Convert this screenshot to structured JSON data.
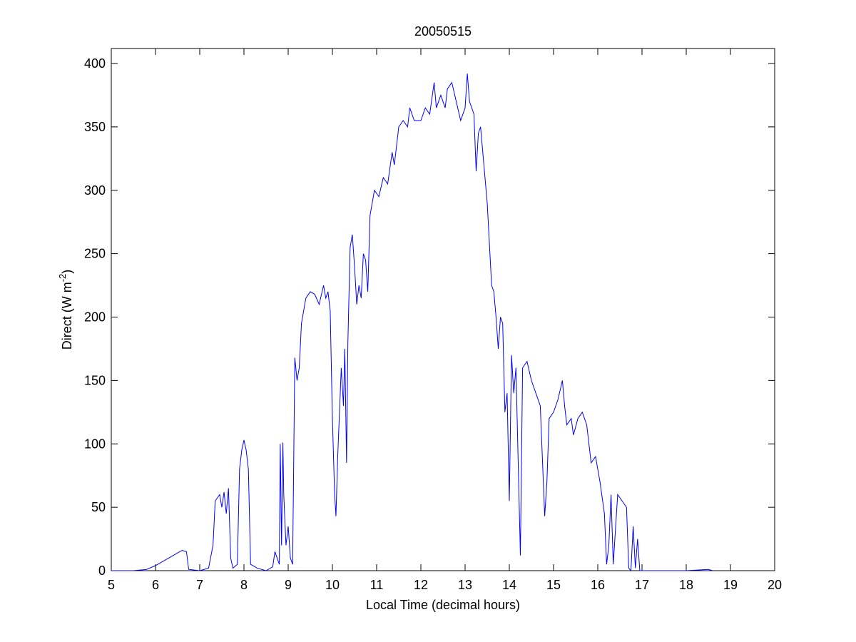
{
  "chart_data": {
    "type": "line",
    "title": "20050515",
    "xlabel": "Local Time (decimal hours)",
    "ylabel": [
      "Direct (W m",
      "-2",
      ")"
    ],
    "xlim": [
      5,
      20
    ],
    "ylim": [
      0,
      400
    ],
    "xticks": [
      5,
      6,
      7,
      8,
      9,
      10,
      11,
      12,
      13,
      14,
      15,
      16,
      17,
      18,
      19,
      20
    ],
    "yticks": [
      0,
      50,
      100,
      150,
      200,
      250,
      300,
      350,
      400
    ],
    "series": [
      {
        "color": "#0000ff",
        "x": [
          5.0,
          5.5,
          5.8,
          6.0,
          6.2,
          6.4,
          6.6,
          6.7,
          6.75,
          7.0,
          7.2,
          7.3,
          7.35,
          7.45,
          7.5,
          7.55,
          7.6,
          7.65,
          7.7,
          7.75,
          7.85,
          7.9,
          7.95,
          8.0,
          8.05,
          8.1,
          8.15,
          8.3,
          8.5,
          8.65,
          8.7,
          8.8,
          8.82,
          8.85,
          8.88,
          8.9,
          8.95,
          9.0,
          9.05,
          9.1,
          9.15,
          9.2,
          9.25,
          9.3,
          9.4,
          9.5,
          9.6,
          9.7,
          9.8,
          9.85,
          9.9,
          9.95,
          10.0,
          10.05,
          10.08,
          10.12,
          10.2,
          10.25,
          10.28,
          10.32,
          10.35,
          10.4,
          10.45,
          10.5,
          10.55,
          10.6,
          10.65,
          10.7,
          10.75,
          10.8,
          10.85,
          10.95,
          11.05,
          11.15,
          11.25,
          11.35,
          11.4,
          11.5,
          11.6,
          11.7,
          11.75,
          11.85,
          12.0,
          12.1,
          12.2,
          12.3,
          12.35,
          12.45,
          12.55,
          12.6,
          12.7,
          12.8,
          12.9,
          13.0,
          13.05,
          13.1,
          13.2,
          13.25,
          13.3,
          13.35,
          13.4,
          13.5,
          13.6,
          13.65,
          13.7,
          13.75,
          13.8,
          13.85,
          13.9,
          13.95,
          14.0,
          14.05,
          14.1,
          14.15,
          14.25,
          14.3,
          14.4,
          14.5,
          14.6,
          14.7,
          14.8,
          14.85,
          14.9,
          15.0,
          15.1,
          15.2,
          15.25,
          15.3,
          15.4,
          15.45,
          15.55,
          15.65,
          15.75,
          15.85,
          15.95,
          16.05,
          16.15,
          16.2,
          16.25,
          16.3,
          16.35,
          16.45,
          16.55,
          16.65,
          16.7,
          16.75,
          16.8,
          16.85,
          16.9,
          16.95,
          17.0,
          18.0,
          18.5,
          18.6
        ],
        "values": [
          0,
          0,
          1,
          4,
          8,
          12,
          16,
          15,
          1,
          0,
          2,
          20,
          55,
          60,
          50,
          62,
          45,
          65,
          10,
          2,
          5,
          80,
          95,
          103,
          95,
          80,
          5,
          2,
          0,
          3,
          15,
          5,
          100,
          20,
          101,
          60,
          20,
          35,
          10,
          5,
          168,
          150,
          160,
          195,
          215,
          220,
          218,
          210,
          225,
          215,
          220,
          205,
          120,
          60,
          43,
          90,
          160,
          130,
          175,
          85,
          180,
          255,
          265,
          240,
          210,
          225,
          215,
          250,
          245,
          220,
          280,
          300,
          295,
          310,
          305,
          330,
          320,
          350,
          355,
          350,
          365,
          355,
          355,
          365,
          360,
          385,
          365,
          375,
          365,
          380,
          385,
          370,
          355,
          365,
          392,
          370,
          360,
          315,
          345,
          350,
          330,
          290,
          225,
          220,
          200,
          175,
          200,
          195,
          125,
          140,
          55,
          170,
          140,
          160,
          12,
          160,
          165,
          150,
          140,
          130,
          43,
          70,
          120,
          125,
          135,
          150,
          130,
          115,
          120,
          107,
          120,
          125,
          115,
          85,
          90,
          70,
          45,
          5,
          20,
          60,
          5,
          60,
          55,
          50,
          2,
          0,
          35,
          2,
          25,
          0,
          0,
          0,
          1,
          0
        ]
      }
    ]
  }
}
